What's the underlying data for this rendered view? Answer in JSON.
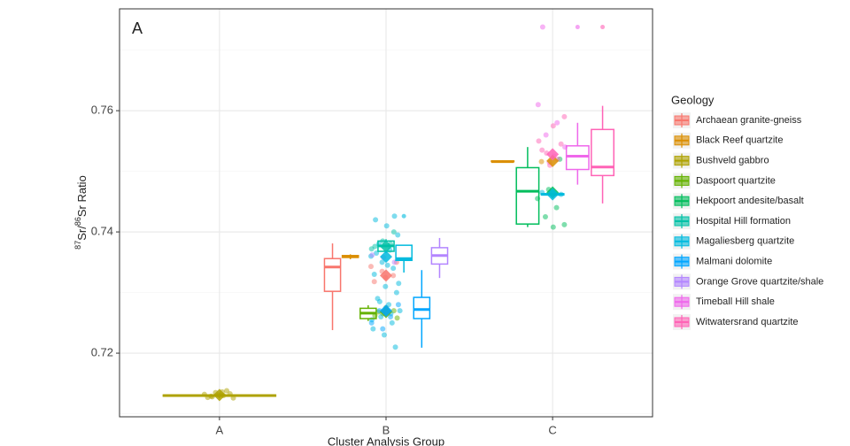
{
  "chart_data": {
    "type": "box",
    "panel_label": "A",
    "ylabel": [
      "87",
      "Sr/",
      "86",
      "Sr Ratio"
    ],
    "xlabel": "Cluster Analysis Group",
    "legend_title": "Geology",
    "categories": [
      "A",
      "B",
      "C"
    ],
    "ylim": [
      0.7095,
      0.7768
    ],
    "yticks": [
      0.72,
      0.74,
      0.76
    ],
    "yminor": [
      0.71,
      0.73,
      0.75,
      0.77
    ],
    "grid": true,
    "series": [
      {
        "name": "Archaean granite-gneiss",
        "color": "#F8766D",
        "boxes": [
          {
            "group": "B",
            "min": 0.7238,
            "q1": 0.7302,
            "median": 0.7342,
            "q3": 0.7356,
            "max": 0.7381,
            "mean": 0.7328
          }
        ],
        "points": [
          {
            "group": "B",
            "values": [
              0.7343,
              0.7335,
              0.7328,
              0.7318,
              0.7325,
              0.735
            ]
          }
        ]
      },
      {
        "name": "Black Reef quartzite",
        "color": "#DB8E00",
        "boxes": [
          {
            "group": "B",
            "min": 0.7355,
            "q1": 0.7358,
            "median": 0.7359,
            "q3": 0.7361,
            "max": 0.7363
          },
          {
            "group": "C",
            "min": 0.7515,
            "q1": 0.7516,
            "median": 0.7516,
            "q3": 0.7517,
            "max": 0.7518,
            "mean": 0.7517
          }
        ],
        "points": [
          {
            "group": "C",
            "values": [
              0.7516
            ]
          }
        ]
      },
      {
        "name": "Bushveld gabbro",
        "color": "#AEA200",
        "boxes": [
          {
            "group": "A",
            "min": 0.7126,
            "q1": 0.7129,
            "median": 0.713,
            "q3": 0.7131,
            "max": 0.7134,
            "mean": 0.7131
          }
        ],
        "points": [
          {
            "group": "A",
            "values": [
              0.7128,
              0.713,
              0.7132,
              0.7135,
              0.7138,
              0.7127,
              0.7131,
              0.7133,
              0.7129,
              0.7136,
              0.7126
            ]
          }
        ]
      },
      {
        "name": "Daspoort quartzite",
        "color": "#64B200",
        "boxes": [
          {
            "group": "B",
            "min": 0.7253,
            "q1": 0.7257,
            "median": 0.7266,
            "q3": 0.7274,
            "max": 0.7279,
            "mean": 0.7268
          }
        ],
        "points": [
          {
            "group": "B",
            "values": [
              0.7265,
              0.727,
              0.7262,
              0.7275,
              0.7258,
              0.7268
            ]
          }
        ]
      },
      {
        "name": "Hekpoort andesite/basalt",
        "color": "#00BD5C",
        "boxes": [
          {
            "group": "C",
            "min": 0.7408,
            "q1": 0.7413,
            "median": 0.7467,
            "q3": 0.7506,
            "max": 0.754,
            "mean": 0.7465
          }
        ],
        "points": [
          {
            "group": "C",
            "values": [
              0.7408,
              0.7412,
              0.7425,
              0.744,
              0.7455,
              0.747,
              0.752
            ]
          }
        ]
      },
      {
        "name": "Hospital Hill formation",
        "color": "#00C1A7",
        "boxes": [
          {
            "group": "B",
            "min": 0.7365,
            "q1": 0.7368,
            "median": 0.7377,
            "q3": 0.7385,
            "max": 0.7388,
            "mean": 0.7376
          }
        ],
        "points": [
          {
            "group": "B",
            "values": [
              0.738,
              0.7372,
              0.7385,
              0.74,
              0.7376
            ]
          }
        ]
      },
      {
        "name": "Magaliesberg quartzite",
        "color": "#00BADE",
        "boxes": [
          {
            "group": "B",
            "min": 0.7333,
            "q1": 0.7353,
            "median": 0.7356,
            "q3": 0.7378,
            "max": 0.7378,
            "mean": 0.7359,
            "outliers": [
              0.7426
            ]
          },
          {
            "group": "C",
            "min": 0.7461,
            "q1": 0.7461,
            "median": 0.7462,
            "q3": 0.7463,
            "max": 0.7464,
            "mean": 0.7462
          }
        ],
        "points": [
          {
            "group": "B",
            "values": [
              0.7426,
              0.742,
              0.741,
              0.7395,
              0.738,
              0.737,
              0.736,
              0.735,
              0.734,
              0.733,
              0.731,
              0.73,
              0.729,
              0.728,
              0.727,
              0.726,
              0.725,
              0.724,
              0.723,
              0.721,
              0.7365,
              0.7345,
              0.7315,
              0.7285,
              0.7265,
              0.7255
            ]
          },
          {
            "group": "C",
            "values": [
              0.7462,
              0.7465
            ]
          }
        ]
      },
      {
        "name": "Malmani dolomite",
        "color": "#00A6FF",
        "boxes": [
          {
            "group": "B",
            "min": 0.7209,
            "q1": 0.7257,
            "median": 0.7272,
            "q3": 0.7292,
            "max": 0.7337,
            "mean": 0.727
          }
        ],
        "points": [
          {
            "group": "B",
            "values": [
              0.728,
              0.727,
              0.726,
              0.725,
              0.724
            ]
          }
        ]
      },
      {
        "name": "Orange Grove quartzite/shale",
        "color": "#B385FF",
        "boxes": [
          {
            "group": "B",
            "min": 0.7324,
            "q1": 0.7347,
            "median": 0.7361,
            "q3": 0.7374,
            "max": 0.739
          }
        ],
        "points": [
          {
            "group": "B",
            "values": [
              0.7362,
              0.7358,
              0.735
            ]
          }
        ]
      },
      {
        "name": "Timeball Hill shale",
        "color": "#EF67EB",
        "boxes": [
          {
            "group": "C",
            "min": 0.7478,
            "q1": 0.7503,
            "median": 0.7525,
            "q3": 0.7542,
            "max": 0.758,
            "outliers": [
              0.7738
            ]
          }
        ],
        "points": [
          {
            "group": "C",
            "values": [
              0.7738,
              0.7525,
              0.754,
              0.756,
              0.758,
              0.761,
              0.7515
            ]
          }
        ]
      },
      {
        "name": "Witwatersrand quartzite",
        "color": "#FF63B6",
        "boxes": [
          {
            "group": "C",
            "min": 0.7447,
            "q1": 0.7493,
            "median": 0.7507,
            "q3": 0.7569,
            "max": 0.7608,
            "mean": 0.7528,
            "outliers": [
              0.7738
            ]
          }
        ],
        "points": [
          {
            "group": "C",
            "values": [
              0.753,
              0.752,
              0.755,
              0.751,
              0.7545,
              0.7535,
              0.7575,
              0.759
            ]
          }
        ]
      }
    ]
  }
}
